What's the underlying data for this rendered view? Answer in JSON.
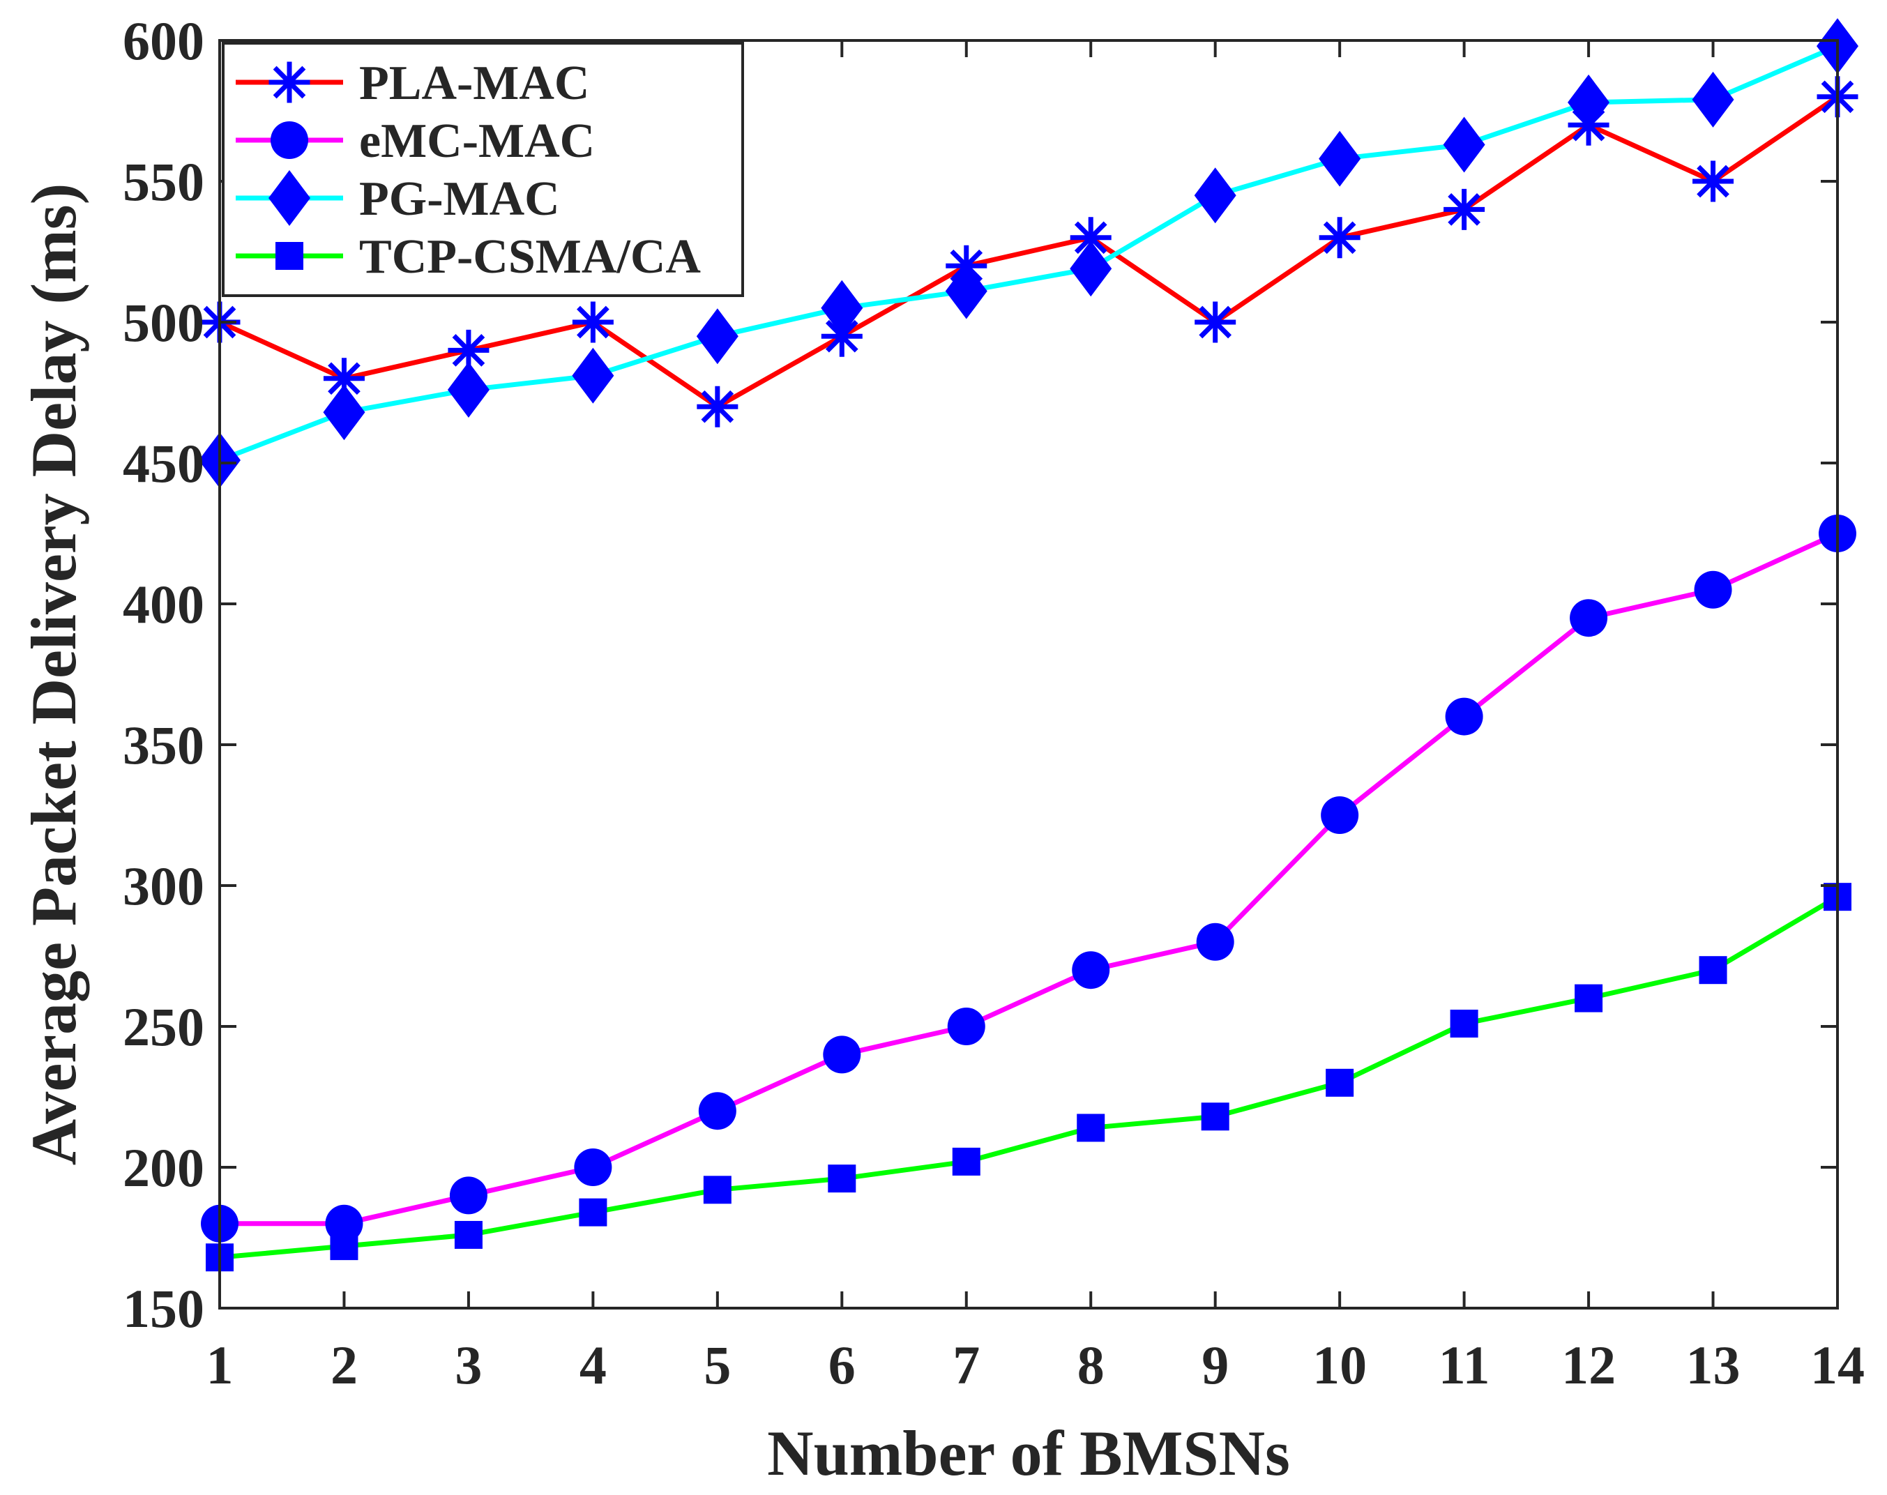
{
  "chart_data": {
    "type": "line",
    "title": "",
    "xlabel": "Number of BMSNs",
    "ylabel": "Average Packet Delivery Delay (ms)",
    "xlim": [
      1,
      14
    ],
    "ylim": [
      150,
      600
    ],
    "xticks": [
      1,
      2,
      3,
      4,
      5,
      6,
      7,
      8,
      9,
      10,
      11,
      12,
      13,
      14
    ],
    "yticks": [
      150,
      200,
      250,
      300,
      350,
      400,
      450,
      500,
      550,
      600
    ],
    "grid": false,
    "legend_position": "top-left",
    "x": [
      1,
      2,
      3,
      4,
      5,
      6,
      7,
      8,
      9,
      10,
      11,
      12,
      13,
      14
    ],
    "series": [
      {
        "name": "PLA-MAC",
        "line_color": "#ff0000",
        "marker": "asterisk",
        "marker_color": "#0000ff",
        "values": [
          500,
          480,
          490,
          500,
          470,
          495,
          520,
          530,
          500,
          530,
          540,
          570,
          550,
          580
        ]
      },
      {
        "name": "eMC-MAC",
        "line_color": "#ff00ff",
        "marker": "circle",
        "marker_color": "#0000ff",
        "values": [
          180,
          180,
          190,
          200,
          220,
          240,
          250,
          270,
          280,
          325,
          360,
          395,
          405,
          425
        ]
      },
      {
        "name": "PG-MAC",
        "line_color": "#00ffff",
        "marker": "diamond",
        "marker_color": "#0000ff",
        "values": [
          451,
          468,
          476,
          481,
          495,
          505,
          511,
          519,
          545,
          558,
          563,
          578,
          579,
          598
        ]
      },
      {
        "name": "TCP-CSMA/CA",
        "line_color": "#00ff00",
        "marker": "square",
        "marker_color": "#0000ff",
        "values": [
          168,
          172,
          176,
          184,
          192,
          196,
          202,
          214,
          218,
          230,
          251,
          260,
          270,
          296
        ]
      }
    ]
  }
}
